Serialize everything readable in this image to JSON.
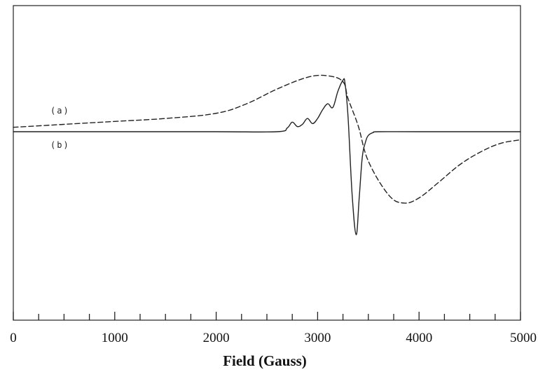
{
  "chart_data": {
    "type": "line",
    "xlabel": "Field (Gauss)",
    "ylabel": "",
    "xlim": [
      0,
      5000
    ],
    "x_ticks": [
      0,
      1000,
      2000,
      3000,
      4000,
      5000
    ],
    "x_minor_step": 250,
    "grid": false,
    "series": [
      {
        "name": "(a)",
        "style": "dashed",
        "color": "#222222",
        "x": [
          0,
          500,
          1000,
          1500,
          2000,
          2300,
          2600,
          2900,
          3100,
          3250,
          3300,
          3400,
          3500,
          3700,
          3850,
          4000,
          4200,
          4400,
          4600,
          4800,
          5000
        ],
        "y": [
          0.06,
          0.1,
          0.14,
          0.18,
          0.25,
          0.38,
          0.58,
          0.74,
          0.76,
          0.68,
          0.45,
          0.08,
          -0.4,
          -0.86,
          -0.97,
          -0.9,
          -0.68,
          -0.45,
          -0.28,
          -0.16,
          -0.11
        ]
      },
      {
        "name": "(b)",
        "style": "solid",
        "color": "#222222",
        "x": [
          0,
          1000,
          2000,
          2600,
          2700,
          2750,
          2800,
          2850,
          2900,
          2950,
          3000,
          3050,
          3100,
          3150,
          3200,
          3250,
          3270,
          3300,
          3340,
          3380,
          3410,
          3440,
          3470,
          3500,
          3550,
          3600,
          4000,
          5000
        ],
        "y": [
          0.0,
          0.0,
          0.0,
          0.0,
          0.05,
          0.13,
          0.07,
          0.1,
          0.18,
          0.11,
          0.18,
          0.3,
          0.38,
          0.33,
          0.55,
          0.7,
          0.66,
          0.2,
          -0.85,
          -1.4,
          -0.9,
          -0.35,
          -0.15,
          -0.05,
          -0.01,
          0.0,
          0.0,
          0.0
        ]
      }
    ]
  },
  "labels": {
    "a": "(a)",
    "b": "(b)"
  }
}
